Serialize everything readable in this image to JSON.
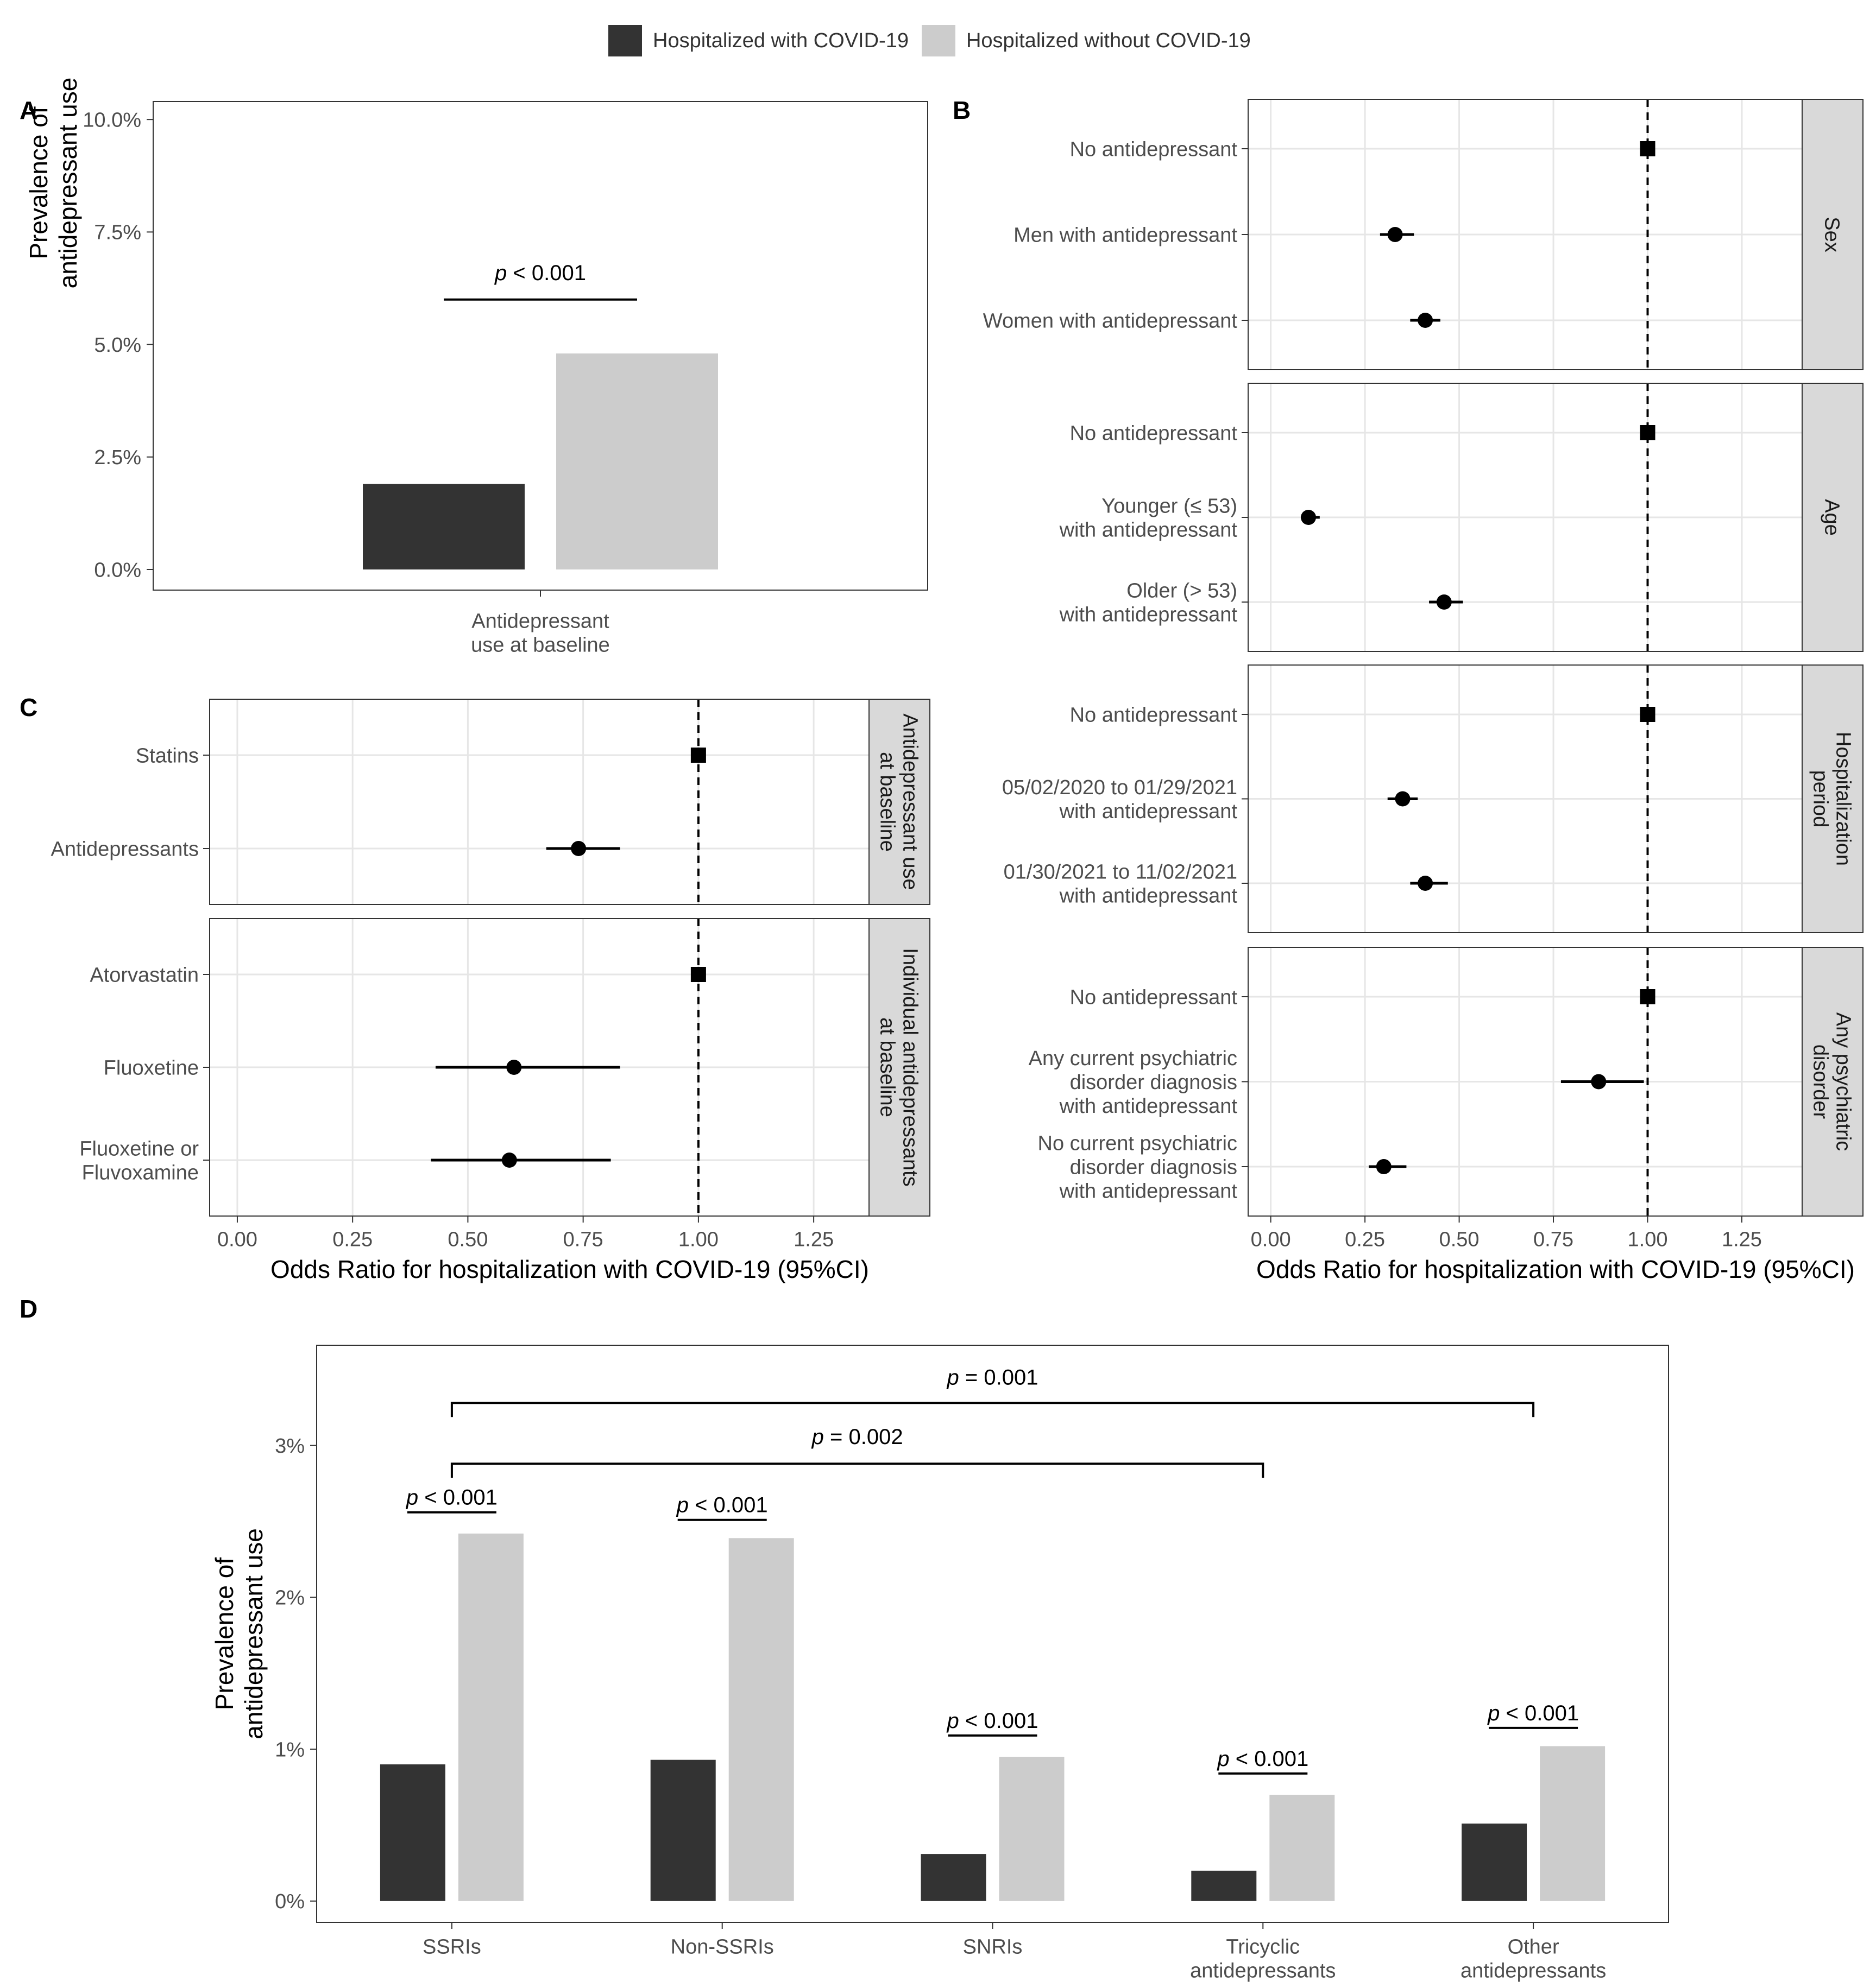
{
  "legend": {
    "items": [
      {
        "label": "Hospitalized with COVID-19",
        "color": "#333333"
      },
      {
        "label": "Hospitalized without COVID-19",
        "color": "#cccccc"
      }
    ]
  },
  "panels": {
    "A": "A",
    "B": "B",
    "C": "C",
    "D": "D"
  },
  "chart_data": [
    {
      "id": "A",
      "type": "bar",
      "ylabel": "Prevalence of\nantidepressant use",
      "categories": [
        "Antidepressant\nuse at baseline"
      ],
      "series": [
        {
          "name": "Hospitalized with COVID-19",
          "values": [
            1.9
          ]
        },
        {
          "name": "Hospitalized without COVID-19",
          "values": [
            4.8
          ]
        }
      ],
      "ylim": [
        0,
        10.4
      ],
      "yticks": [
        0,
        2.5,
        5,
        7.5,
        10
      ],
      "ytick_labels": [
        "0.0%",
        "2.5%",
        "5.0%",
        "7.5%",
        "10.0%"
      ],
      "annotations": [
        {
          "text_italic": "p",
          "text": " < 0.001",
          "y": 6.0,
          "label_y": 6.6
        }
      ]
    },
    {
      "id": "B",
      "type": "scatter",
      "subtype": "forest",
      "xlabel": "Odds Ratio for hospitalization with COVID-19 (95%CI)",
      "xlim": [
        -0.06,
        1.41
      ],
      "xticks": [
        0,
        0.25,
        0.5,
        0.75,
        1,
        1.25
      ],
      "xtick_labels": [
        "0.00",
        "0.25",
        "0.50",
        "0.75",
        "1.00",
        "1.25"
      ],
      "reference_line": 1.0,
      "facets": [
        {
          "strip": "Sex",
          "rows": [
            {
              "label": "No antidepressant",
              "or": 1.0,
              "lo": 1.0,
              "hi": 1.0,
              "marker": "square"
            },
            {
              "label": "Men with antidepressant",
              "or": 0.33,
              "lo": 0.29,
              "hi": 0.38,
              "marker": "circle"
            },
            {
              "label": "Women with antidepressant",
              "or": 0.41,
              "lo": 0.37,
              "hi": 0.45,
              "marker": "circle"
            }
          ]
        },
        {
          "strip": "Age",
          "rows": [
            {
              "label": "No antidepressant",
              "or": 1.0,
              "lo": 1.0,
              "hi": 1.0,
              "marker": "square"
            },
            {
              "label": "Younger (≤ 53)\nwith antidepressant",
              "or": 0.1,
              "lo": 0.08,
              "hi": 0.13,
              "marker": "circle"
            },
            {
              "label": "Older (> 53)\nwith antidepressant",
              "or": 0.46,
              "lo": 0.42,
              "hi": 0.51,
              "marker": "circle"
            }
          ]
        },
        {
          "strip": "Hospitalization\nperiod",
          "rows": [
            {
              "label": "No antidepressant",
              "or": 1.0,
              "lo": 1.0,
              "hi": 1.0,
              "marker": "square"
            },
            {
              "label": "05/02/2020 to 01/29/2021\nwith antidepressant",
              "or": 0.35,
              "lo": 0.31,
              "hi": 0.39,
              "marker": "circle"
            },
            {
              "label": "01/30/2021 to 11/02/2021\nwith antidepressant",
              "or": 0.41,
              "lo": 0.37,
              "hi": 0.47,
              "marker": "circle"
            }
          ]
        },
        {
          "strip": "Any psychiatric\ndisorder",
          "rows": [
            {
              "label": "No antidepressant",
              "or": 1.0,
              "lo": 1.0,
              "hi": 1.0,
              "marker": "square"
            },
            {
              "label": "Any current psychiatric\ndisorder diagnosis\nwith antidepressant",
              "or": 0.87,
              "lo": 0.77,
              "hi": 0.99,
              "marker": "circle"
            },
            {
              "label": "No current psychiatric\ndisorder diagnosis\nwith antidepressant",
              "or": 0.3,
              "lo": 0.26,
              "hi": 0.36,
              "marker": "circle"
            }
          ]
        }
      ]
    },
    {
      "id": "C",
      "type": "scatter",
      "subtype": "forest",
      "xlabel": "Odds Ratio for hospitalization with COVID-19 (95%CI)",
      "xlim": [
        -0.06,
        1.37
      ],
      "xticks": [
        0,
        0.25,
        0.5,
        0.75,
        1,
        1.25
      ],
      "xtick_labels": [
        "0.00",
        "0.25",
        "0.50",
        "0.75",
        "1.00",
        "1.25"
      ],
      "reference_line": 1.0,
      "facets": [
        {
          "strip": "Antidepressant use\nat baseline",
          "rows": [
            {
              "label": "Statins",
              "or": 1.0,
              "lo": 1.0,
              "hi": 1.0,
              "marker": "square"
            },
            {
              "label": "Antidepressants",
              "or": 0.74,
              "lo": 0.67,
              "hi": 0.83,
              "marker": "circle"
            }
          ]
        },
        {
          "strip": "Individual antidepressants\nat baseline",
          "rows": [
            {
              "label": "Atorvastatin",
              "or": 1.0,
              "lo": 1.0,
              "hi": 1.0,
              "marker": "square"
            },
            {
              "label": "Fluoxetine",
              "or": 0.6,
              "lo": 0.43,
              "hi": 0.83,
              "marker": "circle"
            },
            {
              "label": "Fluoxetine or\nFluvoxamine",
              "or": 0.59,
              "lo": 0.42,
              "hi": 0.81,
              "marker": "circle"
            }
          ]
        }
      ]
    },
    {
      "id": "D",
      "type": "bar",
      "ylabel": "Prevalence of\nantidepressant use",
      "categories": [
        "SSRIs",
        "Non-SSRIs",
        "SNRIs",
        "Tricyclic\nantidepressants",
        "Other\nantidepressants"
      ],
      "series": [
        {
          "name": "Hospitalized with COVID-19",
          "values": [
            0.9,
            0.93,
            0.31,
            0.2,
            0.51
          ]
        },
        {
          "name": "Hospitalized without COVID-19",
          "values": [
            2.42,
            2.39,
            0.95,
            0.7,
            1.02
          ]
        }
      ],
      "ylim": [
        -0.14,
        3.66
      ],
      "yticks": [
        0,
        1,
        2,
        3
      ],
      "ytick_labels": [
        "0%",
        "1%",
        "2%",
        "3%"
      ],
      "annotations": [
        {
          "type": "pair",
          "category": 0,
          "y": 2.56,
          "label_y": 2.66,
          "text_italic": "p",
          "text": " < 0.001"
        },
        {
          "type": "pair",
          "category": 1,
          "y": 2.51,
          "label_y": 2.61,
          "text_italic": "p",
          "text": " < 0.001"
        },
        {
          "type": "pair",
          "category": 2,
          "y": 1.09,
          "label_y": 1.19,
          "text_italic": "p",
          "text": " < 0.001"
        },
        {
          "type": "pair",
          "category": 3,
          "y": 0.84,
          "label_y": 0.94,
          "text_italic": "p",
          "text": " < 0.001"
        },
        {
          "type": "pair",
          "category": 4,
          "y": 1.14,
          "label_y": 1.24,
          "text_italic": "p",
          "text": " < 0.001"
        },
        {
          "type": "bracket",
          "from": 0,
          "to": 3,
          "y": 2.88,
          "label_y": 3.06,
          "text_italic": "p",
          "text": " = 0.002"
        },
        {
          "type": "bracket",
          "from": 0,
          "to": 4,
          "y": 3.28,
          "label_y": 3.45,
          "text_italic": "p",
          "text": " = 0.001"
        }
      ]
    }
  ]
}
